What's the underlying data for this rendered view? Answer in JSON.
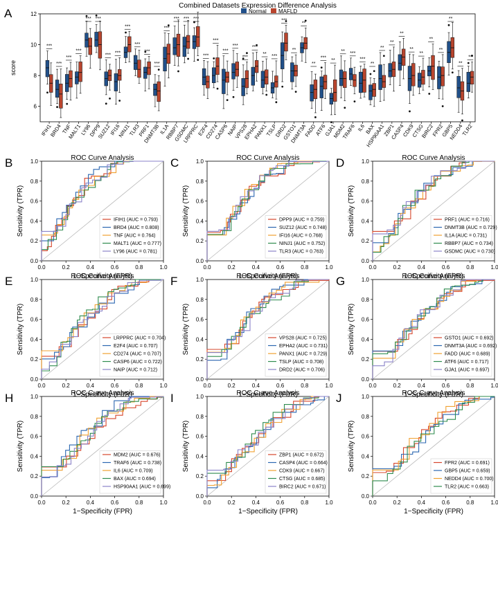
{
  "colors": {
    "normal": "#21508a",
    "mafld": "#b9452e",
    "diag": "#b8b8b8",
    "axis": "#000000"
  },
  "chart_data": [
    {
      "type": "box",
      "panel": "A",
      "title": "Combined Datasets Expression Difference Analysis",
      "ylabel": "score",
      "ylim": [
        5,
        12
      ],
      "yticks": [
        6,
        8,
        10,
        12
      ],
      "legend": [
        "Normal",
        "MAFLD"
      ],
      "genes": [
        "IFIH1",
        "BRD4",
        "TNF",
        "MALT1",
        "LY96",
        "DPP9",
        "SUZ12",
        "IFI16",
        "NINJ1",
        "TLR3",
        "PRF1",
        "DNMT3B",
        "IL1A",
        "RBBP7",
        "GSDMC",
        "LRPPRC",
        "E2F4",
        "CD274",
        "CASP6",
        "NAIP",
        "VPS28",
        "EPHA2",
        "PANX1",
        "TSLP",
        "DRD2",
        "GSTO1",
        "DNMT3A",
        "FADD",
        "ATF6",
        "GJA1",
        "MDM2",
        "TRAF6",
        "IL6",
        "BAX",
        "HSP90AA1",
        "ZBP1",
        "CASP4",
        "CDK9",
        "CTSG",
        "BIRC2",
        "FPR2",
        "GBP5",
        "NEDD4",
        "TLR2"
      ],
      "normal_median": [
        8.5,
        7.1,
        7.5,
        7.9,
        10.3,
        10.3,
        7.8,
        7.6,
        9.5,
        8.8,
        8.2,
        7.1,
        9.1,
        9.8,
        9.9,
        10.2,
        7.9,
        8.0,
        7.7,
        8.2,
        7.3,
        8.0,
        7.7,
        7.2,
        9.3,
        8.3,
        9.8,
        6.9,
        7.3,
        6.5,
        7.8,
        8.1,
        7.5,
        7.0,
        7.8,
        8.3,
        8.8,
        7.8,
        7.7,
        8.3,
        7.9,
        9.5,
        7.2,
        7.5
      ],
      "mafld_median": [
        7.5,
        6.8,
        7.8,
        8.2,
        9.9,
        10.0,
        8.0,
        8.0,
        10.0,
        8.4,
        8.5,
        7.0,
        9.4,
        10.0,
        10.2,
        10.5,
        7.6,
        8.6,
        7.9,
        8.4,
        7.8,
        8.6,
        7.9,
        7.6,
        10.1,
        8.3,
        10.1,
        7.1,
        7.6,
        6.9,
        7.8,
        7.7,
        7.7,
        7.1,
        7.6,
        8.4,
        9.2,
        8.0,
        7.9,
        8.6,
        8.0,
        9.8,
        7.0,
        7.9
      ],
      "significance": [
        "***",
        "***",
        "***",
        "***",
        "***",
        "***",
        "***",
        "***",
        "***",
        "***",
        "***",
        "***",
        "***",
        "***",
        "***",
        "***",
        "***",
        "***",
        "***",
        "***",
        "***",
        "***",
        "**",
        "***",
        "***",
        "**",
        "**",
        "**",
        "***",
        "**",
        "**",
        "***",
        "***",
        "**",
        "**",
        "**",
        "**",
        "**",
        "**",
        "**",
        "**",
        "**",
        "**",
        "**"
      ]
    },
    {
      "type": "line",
      "panel": "B",
      "title": "ROC Curve Analysis",
      "xlabel": "1−Specificity (FPR)",
      "ylabel": "Sensitivity (TPR)",
      "xlim": [
        0,
        1
      ],
      "ylim": [
        0,
        1
      ],
      "series": [
        {
          "name": "IFIH1 (AUC = 0.793)",
          "color": "#d6452b"
        },
        {
          "name": "BRD4 (AUC = 0.808)",
          "color": "#2a66b0"
        },
        {
          "name": "TNF (AUC = 0.764)",
          "color": "#f0a030"
        },
        {
          "name": "MALT1 (AUC = 0.777)",
          "color": "#2e8b4e"
        },
        {
          "name": "LY96 (AUC = 0.781)",
          "color": "#8a82c8"
        }
      ]
    },
    {
      "type": "line",
      "panel": "C",
      "title": "ROC Curve Analysis",
      "xlabel": "1−Specificity (FPR)",
      "ylabel": "Sensitivity (TPR)",
      "xlim": [
        0,
        1
      ],
      "ylim": [
        0,
        1
      ],
      "series": [
        {
          "name": "DPP9 (AUC = 0.759)",
          "color": "#d6452b"
        },
        {
          "name": "SUZ12 (AUC = 0.748)",
          "color": "#2a66b0"
        },
        {
          "name": "IFI16 (AUC = 0.768)",
          "color": "#f0a030"
        },
        {
          "name": "NINJ1 (AUC = 0.752)",
          "color": "#2e8b4e"
        },
        {
          "name": "TLR3 (AUC = 0.763)",
          "color": "#8a82c8"
        }
      ]
    },
    {
      "type": "line",
      "panel": "D",
      "title": "ROC Curve Analysis",
      "xlabel": "1−Specificity (FPR)",
      "ylabel": "Sensitivity (TPR)",
      "xlim": [
        0,
        1
      ],
      "ylim": [
        0,
        1
      ],
      "series": [
        {
          "name": "PRF1 (AUC = 0.716)",
          "color": "#d6452b"
        },
        {
          "name": "DNMT3B (AUC = 0.729)",
          "color": "#2a66b0"
        },
        {
          "name": "IL1A (AUC = 0.731)",
          "color": "#f0a030"
        },
        {
          "name": "RBBP7 (AUC = 0.734)",
          "color": "#2e8b4e"
        },
        {
          "name": "GSDMC (AUC = 0.730)",
          "color": "#8a82c8"
        }
      ]
    },
    {
      "type": "line",
      "panel": "E",
      "title": "ROC Curve Analysis",
      "xlabel": "1−Specificity (FPR)",
      "ylabel": "Sensitivity (TPR)",
      "xlim": [
        0,
        1
      ],
      "ylim": [
        0,
        1
      ],
      "series": [
        {
          "name": "LRPPRC (AUC = 0.704)",
          "color": "#d6452b"
        },
        {
          "name": "E2F4 (AUC = 0.707)",
          "color": "#2a66b0"
        },
        {
          "name": "CD274 (AUC = 0.707)",
          "color": "#f0a030"
        },
        {
          "name": "CASP6 (AUC = 0.722)",
          "color": "#2e8b4e"
        },
        {
          "name": "NAIP (AUC = 0.712)",
          "color": "#8a82c8"
        }
      ]
    },
    {
      "type": "line",
      "panel": "F",
      "title": "ROC Curve Analysis",
      "xlabel": "1−Specificity (FPR)",
      "ylabel": "Sensitivity (TPR)",
      "xlim": [
        0,
        1
      ],
      "ylim": [
        0,
        1
      ],
      "series": [
        {
          "name": "VPS28 (AUC = 0.725)",
          "color": "#d6452b"
        },
        {
          "name": "EPHA2 (AUC = 0.731)",
          "color": "#2a66b0"
        },
        {
          "name": "PANX1 (AUC = 0.729)",
          "color": "#f0a030"
        },
        {
          "name": "TSLP (AUC = 0.708)",
          "color": "#2e8b4e"
        },
        {
          "name": "DRD2 (AUC = 0.706)",
          "color": "#8a82c8"
        }
      ]
    },
    {
      "type": "line",
      "panel": "G",
      "title": "ROC Curve Analysis",
      "xlabel": "1−Specificity (FPR)",
      "ylabel": "Sensitivity (TPR)",
      "xlim": [
        0,
        1
      ],
      "ylim": [
        0,
        1
      ],
      "series": [
        {
          "name": "GSTO1 (AUC = 0.692)",
          "color": "#d6452b"
        },
        {
          "name": "DNMT3A (AUC = 0.692)",
          "color": "#2a66b0"
        },
        {
          "name": "FADD (AUC = 0.689)",
          "color": "#f0a030"
        },
        {
          "name": "ATF6 (AUC = 0.717)",
          "color": "#2e8b4e"
        },
        {
          "name": "GJA1 (AUC = 0.697)",
          "color": "#8a82c8"
        }
      ]
    },
    {
      "type": "line",
      "panel": "H",
      "title": "ROC Curve Analysis",
      "xlabel": "1−Specificity (FPR)",
      "ylabel": "Sensitivity (TPR)",
      "xlim": [
        0,
        1
      ],
      "ylim": [
        0,
        1
      ],
      "series": [
        {
          "name": "MDM2 (AUC = 0.676)",
          "color": "#d6452b"
        },
        {
          "name": "TRAF6 (AUC = 0.738)",
          "color": "#2a66b0"
        },
        {
          "name": "IL6 (AUC = 0.709)",
          "color": "#f0a030"
        },
        {
          "name": "BAX (AUC = 0.694)",
          "color": "#2e8b4e"
        },
        {
          "name": "HSP90AA1 (AUC = 0.699)",
          "color": "#8a82c8"
        }
      ]
    },
    {
      "type": "line",
      "panel": "I",
      "title": "ROC Curve Analysis",
      "xlabel": "1−Specificity (FPR)",
      "ylabel": "Sensitivity (TPR)",
      "xlim": [
        0,
        1
      ],
      "ylim": [
        0,
        1
      ],
      "series": [
        {
          "name": "ZBP1 (AUC = 0.672)",
          "color": "#d6452b"
        },
        {
          "name": "CASP4 (AUC = 0.664)",
          "color": "#2a66b0"
        },
        {
          "name": "CDK9 (AUC = 0.667)",
          "color": "#f0a030"
        },
        {
          "name": "CTSG (AUC = 0.685)",
          "color": "#2e8b4e"
        },
        {
          "name": "BIRC2 (AUC = 0.671)",
          "color": "#8a82c8"
        }
      ]
    },
    {
      "type": "line",
      "panel": "J",
      "title": "ROC Curve Analysis",
      "xlabel": "1−Specificity (FPR)",
      "ylabel": "Sensitivity (TPR)",
      "xlim": [
        0,
        1
      ],
      "ylim": [
        0,
        1
      ],
      "series": [
        {
          "name": "FPR2 (AUC = 0.691)",
          "color": "#d6452b"
        },
        {
          "name": "GBP5 (AUC = 0.659)",
          "color": "#2a66b0"
        },
        {
          "name": "NEDD4 (AUC = 0.700)",
          "color": "#f0a030"
        },
        {
          "name": "TLR2 (AUC = 0.663)",
          "color": "#2e8b4e"
        }
      ]
    }
  ]
}
